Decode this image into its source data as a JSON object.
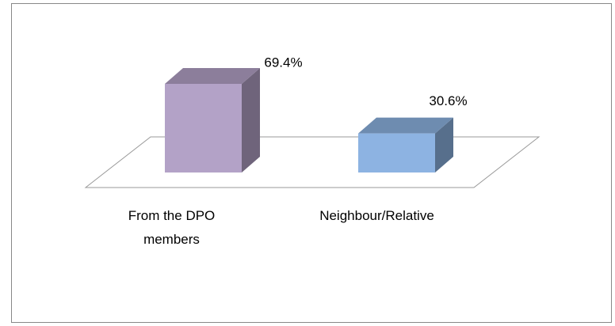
{
  "chart_data": {
    "type": "bar3d",
    "categories": [
      "From the DPO members",
      "Neighbour/Relative"
    ],
    "values": [
      69.4,
      30.6
    ],
    "value_labels": [
      "69.4%",
      "30.6%"
    ],
    "colors": [
      "#b3a2c7",
      "#8db3e2"
    ]
  }
}
